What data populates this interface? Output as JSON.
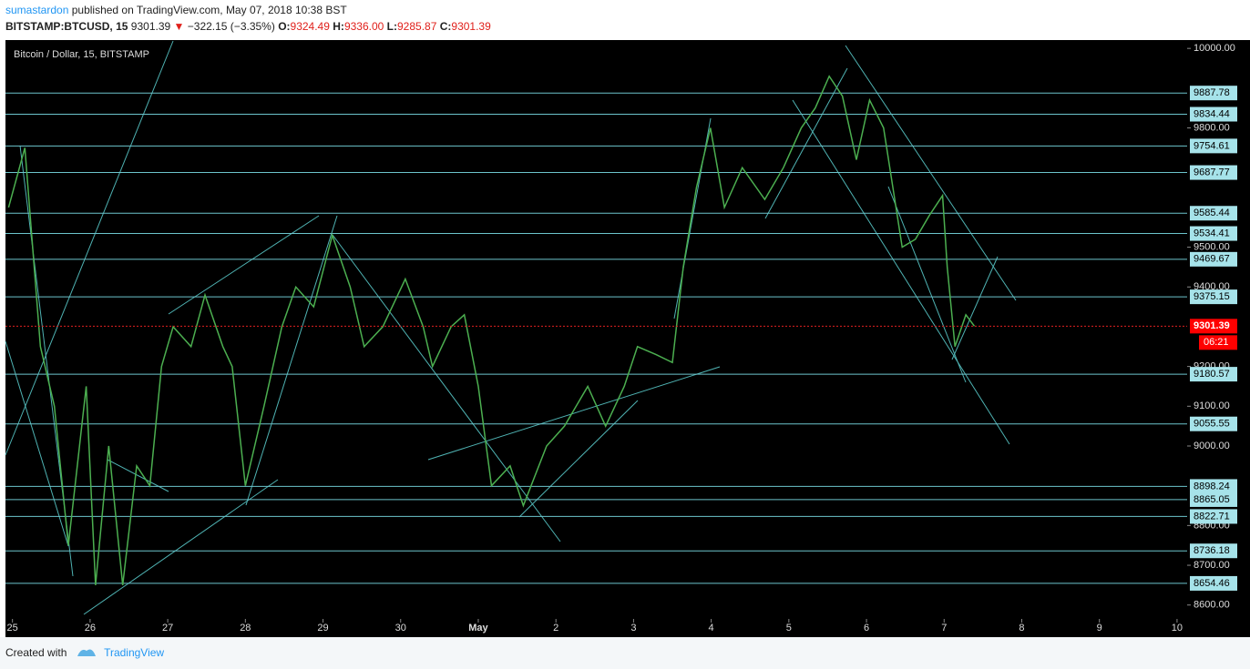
{
  "header": {
    "author": "sumastardon",
    "published": "published on TradingView.com, May 07, 2018 10:38 BST",
    "symbol": "BITSTAMP:BTCUSD, 15",
    "last": "9301.39",
    "change_arrow": "▼",
    "change": "−322.15 (−3.35%)",
    "open_label": "O:",
    "open": "9324.49",
    "high_label": "H:",
    "high": "9336.00",
    "low_label": "L:",
    "low": "9285.87",
    "close_label": "C:",
    "close": "9301.39"
  },
  "chart_data": {
    "type": "line",
    "title": "Bitcoin / Dollar, 15, BITSTAMP",
    "color": "#4caf50",
    "x": [
      -0.05,
      0.16,
      0.36,
      0.54,
      0.72,
      0.95,
      1.07,
      1.24,
      1.42,
      1.6,
      1.77,
      1.92,
      2.07,
      2.3,
      2.48,
      2.71,
      2.83,
      3.0,
      3.24,
      3.47,
      3.65,
      3.88,
      4.12,
      4.35,
      4.53,
      4.77,
      5.06,
      5.29,
      5.41,
      5.65,
      5.82,
      6.0,
      6.17,
      6.41,
      6.58,
      6.88,
      7.11,
      7.41,
      7.64,
      7.88,
      8.05,
      8.29,
      8.5,
      8.64,
      8.81,
      8.99,
      9.17,
      9.4,
      9.69,
      9.93,
      10.16,
      10.34,
      10.52,
      10.69,
      10.87,
      11.04,
      11.22,
      11.34,
      11.46,
      11.63,
      11.81,
      11.98,
      12.04,
      12.14,
      12.28,
      12.39
    ],
    "values": [
      9600,
      9750,
      9250,
      9100,
      8750,
      9150,
      8650,
      9000,
      8650,
      8950,
      8900,
      9200,
      9300,
      9250,
      9380,
      9250,
      9200,
      8900,
      9100,
      9300,
      9400,
      9350,
      9530,
      9400,
      9250,
      9300,
      9420,
      9300,
      9200,
      9300,
      9330,
      9150,
      8900,
      8950,
      8850,
      9000,
      9050,
      9150,
      9050,
      9150,
      9250,
      9230,
      9210,
      9450,
      9650,
      9800,
      9600,
      9700,
      9620,
      9700,
      9800,
      9850,
      9930,
      9880,
      9720,
      9870,
      9800,
      9650,
      9500,
      9520,
      9580,
      9630,
      9450,
      9250,
      9330,
      9301.39
    ],
    "xlim": [
      -0.09,
      15.13
    ],
    "ylim": [
      8565,
      10021
    ],
    "xticks": [
      {
        "value": 0,
        "label": "25"
      },
      {
        "value": 1,
        "label": "26"
      },
      {
        "value": 2,
        "label": "27"
      },
      {
        "value": 3,
        "label": "28"
      },
      {
        "value": 4,
        "label": "29"
      },
      {
        "value": 5,
        "label": "30"
      },
      {
        "value": 6,
        "label": "May"
      },
      {
        "value": 7,
        "label": "2"
      },
      {
        "value": 8,
        "label": "3"
      },
      {
        "value": 9,
        "label": "4"
      },
      {
        "value": 10,
        "label": "5"
      },
      {
        "value": 11,
        "label": "6"
      },
      {
        "value": 12,
        "label": "7"
      },
      {
        "value": 13,
        "label": "8"
      },
      {
        "value": 14,
        "label": "9"
      },
      {
        "value": 15,
        "label": "10"
      }
    ],
    "yticks": [
      {
        "value": 10000,
        "label": "10000.00"
      },
      {
        "value": 9800,
        "label": "9800.00"
      },
      {
        "value": 9500,
        "label": "9500.00"
      },
      {
        "value": 9400,
        "label": "9400.00"
      },
      {
        "value": 9200,
        "label": "9200.00"
      },
      {
        "value": 9100,
        "label": "9100.00"
      },
      {
        "value": 9000,
        "label": "9000.00"
      },
      {
        "value": 8800,
        "label": "8800.00"
      },
      {
        "value": 8700,
        "label": "8700.00"
      },
      {
        "value": 8600,
        "label": "8600.00"
      }
    ],
    "levels": [
      9887.78,
      9834.44,
      9754.61,
      9687.77,
      9585.44,
      9534.41,
      9469.67,
      9375.15,
      9180.57,
      9055.55,
      8898.24,
      8865.05,
      8822.71,
      8736.18,
      8654.46
    ],
    "current_price": 9301.39,
    "countdown": "06:21"
  },
  "footer": {
    "created": "Created with",
    "brand": "TradingView"
  }
}
